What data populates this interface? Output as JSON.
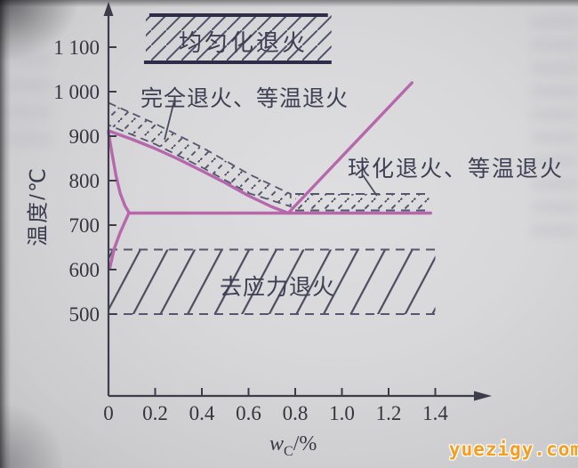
{
  "watermark": {
    "text": "yuezigy.com",
    "color": "#f59d1c"
  },
  "colors": {
    "line_purple": "#b767ac",
    "hatch": "#50506a",
    "axis": "#3c3c4a",
    "band_border_dark": "#2d2d49",
    "text_dark": "#3e3e54"
  },
  "chart_data": {
    "type": "line",
    "title": "",
    "xlabel": {
      "variable": "w",
      "subscript": "C",
      "unit": "/%"
    },
    "ylabel": "温度/℃",
    "x_axis": {
      "values": [
        0,
        0.2,
        0.4,
        0.6,
        0.8,
        1.0,
        1.2,
        1.4
      ],
      "labels": [
        "0",
        "0.2",
        "0.4",
        "0.6",
        "0.8",
        "1.0",
        "1.2",
        "1.4"
      ]
    },
    "y_axis": {
      "values": [
        500,
        600,
        700,
        800,
        900,
        1000,
        1100
      ],
      "labels": [
        "500",
        "600",
        "700",
        "800",
        "900",
        "1 000",
        "1 100"
      ]
    },
    "xlim": [
      0,
      1.55
    ],
    "ylim": [
      400,
      1210
    ],
    "grid": false,
    "series": [
      {
        "name": "A3-GS-line",
        "points": [
          [
            0,
            912
          ],
          [
            0.1,
            893
          ],
          [
            0.2,
            872
          ],
          [
            0.3,
            848
          ],
          [
            0.4,
            822
          ],
          [
            0.5,
            795
          ],
          [
            0.6,
            766
          ],
          [
            0.7,
            741
          ],
          [
            0.77,
            727
          ]
        ]
      },
      {
        "name": "GP-line",
        "points": [
          [
            0,
            908
          ],
          [
            0.015,
            862
          ],
          [
            0.032,
            812
          ],
          [
            0.05,
            772
          ],
          [
            0.07,
            744
          ],
          [
            0.088,
            728
          ]
        ]
      },
      {
        "name": "PQ-line",
        "points": [
          [
            0.088,
            728
          ],
          [
            0.05,
            683
          ],
          [
            0.025,
            648
          ],
          [
            0.005,
            602
          ]
        ]
      },
      {
        "name": "A1-line-727C",
        "points": [
          [
            0.088,
            727
          ],
          [
            1.38,
            727
          ]
        ]
      },
      {
        "name": "Acm-SE-line",
        "points": [
          [
            0.77,
            727
          ],
          [
            1.3,
            1020
          ]
        ]
      }
    ],
    "bands": [
      {
        "name": "homogenization-annealing",
        "label": "均匀化退火",
        "style": "solid-hatch",
        "x": [
          0.175,
          0.94
        ],
        "t": [
          1066,
          1172
        ]
      },
      {
        "name": "full-isothermal-annealing",
        "label": "完全退火、等温退火",
        "style": "dash-hatch-poly",
        "upper": [
          [
            0,
            975
          ],
          [
            0.2,
            928
          ],
          [
            0.4,
            875
          ],
          [
            0.6,
            815
          ],
          [
            0.78,
            770
          ]
        ],
        "lower": [
          [
            0,
            925
          ],
          [
            0.2,
            882
          ],
          [
            0.4,
            830
          ],
          [
            0.6,
            772
          ],
          [
            0.78,
            742
          ]
        ]
      },
      {
        "name": "spheroidizing-isothermal-annealing",
        "label": "球化退火、等温退火",
        "style": "dash-hatch-rect",
        "x": [
          0.8,
          1.38
        ],
        "t": [
          733,
          770
        ]
      },
      {
        "name": "stress-relief-annealing",
        "label": "去应力退火",
        "style": "dash-hatch-rect-wide",
        "x": [
          0,
          1.4
        ],
        "t": [
          500,
          645
        ]
      }
    ],
    "annotations": [
      {
        "name": "full-annealing-leader",
        "points": [
          [
            0.28,
            976
          ],
          [
            0.24,
            892
          ]
        ]
      },
      {
        "name": "spheroidizing-leader",
        "points": [
          [
            1.09,
            812
          ],
          [
            1.15,
            766
          ]
        ]
      }
    ]
  }
}
